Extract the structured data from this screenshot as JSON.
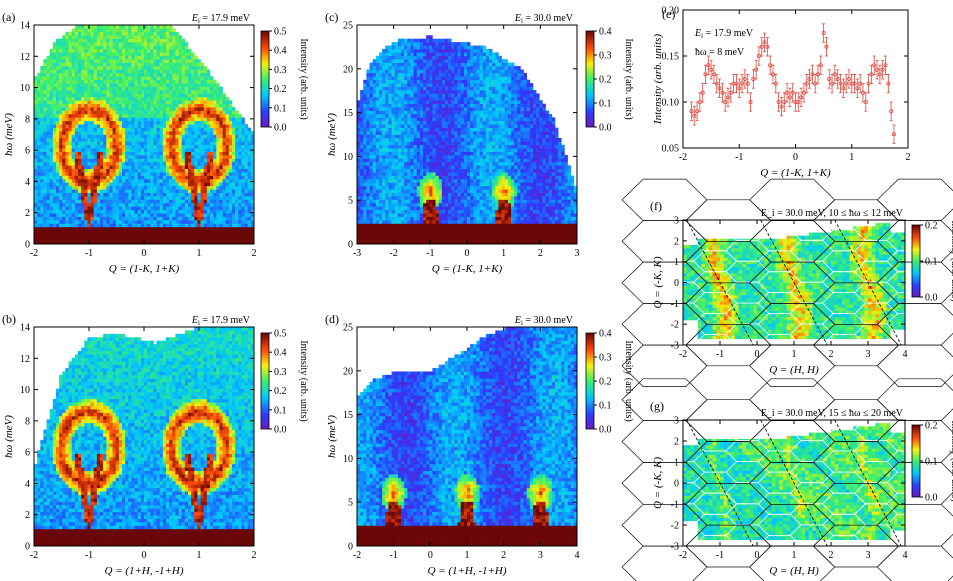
{
  "chart_data": [
    {
      "id": "a",
      "panel_label": "(a)",
      "type": "heatmap",
      "annotation": "E_i = 17.9 meV",
      "annotation_parts": {
        "sym": "E",
        "sub": "i",
        "rest": " = 17.9 meV"
      },
      "xlabel": "Q = (1-K, 1+K)",
      "ylabel": "ħω (meV)",
      "xlim": [
        -2,
        2
      ],
      "ylim": [
        0,
        14
      ],
      "xticks": [
        "-2",
        "-1",
        "0",
        "1",
        "2"
      ],
      "xtick_values": [
        -2,
        -1,
        0,
        1,
        2
      ],
      "yticks": [
        "0",
        "2",
        "4",
        "6",
        "8",
        "10",
        "12",
        "14"
      ],
      "ytick_values": [
        0,
        2,
        4,
        6,
        8,
        10,
        12,
        14
      ],
      "colorbar": {
        "label": "Intensity (arb. units)",
        "range": [
          0,
          0.5
        ],
        "ticks": [
          "0.0",
          "0.1",
          "0.2",
          "0.3",
          "0.4",
          "0.5"
        ],
        "tick_values": [
          0,
          0.1,
          0.2,
          0.3,
          0.4,
          0.5
        ]
      },
      "features": {
        "peaks_x": [
          -1,
          1
        ],
        "coverage_top": [
          [
            -2,
            10.5
          ],
          [
            -1.6,
            13
          ],
          [
            -1.2,
            14
          ],
          [
            0.5,
            14
          ],
          [
            1.3,
            10.5
          ],
          [
            2,
            7
          ]
        ]
      }
    },
    {
      "id": "b",
      "panel_label": "(b)",
      "type": "heatmap",
      "annotation": "E_i = 17.9 meV",
      "annotation_parts": {
        "sym": "E",
        "sub": "i",
        "rest": " = 17.9 meV"
      },
      "xlabel": "Q = (1+H, -1+H)",
      "ylabel": "ħω (meV)",
      "xlim": [
        -2,
        2
      ],
      "ylim": [
        0,
        14
      ],
      "xticks": [
        "-2",
        "-1",
        "0",
        "1",
        "2"
      ],
      "xtick_values": [
        -2,
        -1,
        0,
        1,
        2
      ],
      "yticks": [
        "0",
        "2",
        "4",
        "6",
        "8",
        "10",
        "12",
        "14"
      ],
      "ytick_values": [
        0,
        2,
        4,
        6,
        8,
        10,
        12,
        14
      ],
      "colorbar": {
        "label": "Intensity (arb. units)",
        "range": [
          0,
          0.5
        ],
        "ticks": [
          "0.0",
          "0.1",
          "0.2",
          "0.3",
          "0.4",
          "0.5"
        ],
        "tick_values": [
          0,
          0.1,
          0.2,
          0.3,
          0.4,
          0.5
        ]
      },
      "features": {
        "peaks_x": [
          -1,
          1
        ],
        "coverage_top": [
          [
            -2,
            5
          ],
          [
            -1.5,
            11
          ],
          [
            -1,
            13.3
          ],
          [
            -0.5,
            13.6
          ],
          [
            0.2,
            13
          ],
          [
            1,
            14
          ],
          [
            2,
            14
          ]
        ]
      }
    },
    {
      "id": "c",
      "panel_label": "(c)",
      "type": "heatmap",
      "annotation": "E_i = 30.0 meV",
      "annotation_parts": {
        "sym": "E",
        "sub": "i",
        "rest": " = 30.0 meV"
      },
      "xlabel": "Q = (1-K, 1+K)",
      "ylabel": "ħω (meV)",
      "xlim": [
        -3,
        3
      ],
      "ylim": [
        0,
        25
      ],
      "xticks": [
        "-3",
        "-2",
        "-1",
        "0",
        "1",
        "2",
        "3"
      ],
      "xtick_values": [
        -3,
        -2,
        -1,
        0,
        1,
        2,
        3
      ],
      "yticks": [
        "0",
        "5",
        "10",
        "15",
        "20",
        "25"
      ],
      "ytick_values": [
        0,
        5,
        10,
        15,
        20,
        25
      ],
      "colorbar": {
        "label": "Intensity (arb. units)",
        "range": [
          0,
          0.4
        ],
        "ticks": [
          "0.0",
          "0.1",
          "0.2",
          "0.3",
          "0.4"
        ],
        "tick_values": [
          0,
          0.1,
          0.2,
          0.3,
          0.4
        ]
      },
      "features": {
        "peaks_x": [
          -1,
          1
        ],
        "coverage_top": [
          [
            -3,
            16
          ],
          [
            -2.6,
            21
          ],
          [
            -2,
            23.2
          ],
          [
            -1,
            23.7
          ],
          [
            0.5,
            22.5
          ],
          [
            1.5,
            20
          ],
          [
            2.4,
            14
          ],
          [
            3,
            6
          ]
        ]
      }
    },
    {
      "id": "d",
      "panel_label": "(d)",
      "type": "heatmap",
      "annotation": "E_i = 30.0 meV",
      "annotation_parts": {
        "sym": "E",
        "sub": "i",
        "rest": " = 30.0 meV"
      },
      "xlabel": "Q = (1+H, -1+H)",
      "ylabel": "ħω (meV)",
      "xlim": [
        -2,
        4
      ],
      "ylim": [
        0,
        25
      ],
      "xticks": [
        "-2",
        "-1",
        "0",
        "1",
        "2",
        "3",
        "4"
      ],
      "xtick_values": [
        -2,
        -1,
        0,
        1,
        2,
        3,
        4
      ],
      "yticks": [
        "0",
        "5",
        "10",
        "15",
        "20",
        "25"
      ],
      "ytick_values": [
        0,
        5,
        10,
        15,
        20,
        25
      ],
      "colorbar": {
        "label": "Intensity (arb. units)",
        "range": [
          0,
          0.4
        ],
        "ticks": [
          "0.0",
          "0.1",
          "0.2",
          "0.3",
          "0.4"
        ],
        "tick_values": [
          0,
          0.1,
          0.2,
          0.3,
          0.4
        ]
      },
      "features": {
        "peaks_x": [
          -1,
          1,
          3
        ],
        "coverage_top": [
          [
            -2,
            17
          ],
          [
            -1.6,
            19
          ],
          [
            -1,
            19.8
          ],
          [
            0,
            20
          ],
          [
            0.8,
            22
          ],
          [
            1.5,
            24
          ],
          [
            2.2,
            25
          ],
          [
            4,
            25
          ]
        ]
      }
    },
    {
      "id": "e",
      "panel_label": "(e)",
      "type": "scatter",
      "annotation_lines": [
        "E_i = 17.9 meV",
        "ħω = 8 meV"
      ],
      "xlabel": "Q = (1-K, 1+K)",
      "ylabel": "Intensity (arb. units)",
      "xlim": [
        -2,
        2
      ],
      "ylim": [
        0.05,
        0.2
      ],
      "xticks": [
        "-2",
        "-1",
        "0",
        "1",
        "2"
      ],
      "xtick_values": [
        -2,
        -1,
        0,
        1,
        2
      ],
      "yticks": [
        "0.05",
        "0.10",
        "0.15",
        "0.20"
      ],
      "ytick_values": [
        0.05,
        0.1,
        0.15,
        0.2
      ],
      "error": 0.01,
      "x": [
        -1.85,
        -1.8,
        -1.75,
        -1.7,
        -1.65,
        -1.6,
        -1.55,
        -1.5,
        -1.45,
        -1.4,
        -1.35,
        -1.3,
        -1.25,
        -1.2,
        -1.15,
        -1.1,
        -1.05,
        -1.0,
        -0.95,
        -0.9,
        -0.85,
        -0.8,
        -0.75,
        -0.7,
        -0.65,
        -0.6,
        -0.55,
        -0.5,
        -0.45,
        -0.4,
        -0.35,
        -0.3,
        -0.25,
        -0.2,
        -0.15,
        -0.1,
        -0.05,
        0.0,
        0.05,
        0.1,
        0.15,
        0.2,
        0.25,
        0.3,
        0.35,
        0.4,
        0.45,
        0.5,
        0.55,
        0.6,
        0.65,
        0.7,
        0.75,
        0.8,
        0.85,
        0.9,
        0.95,
        1.0,
        1.05,
        1.1,
        1.15,
        1.2,
        1.25,
        1.3,
        1.35,
        1.4,
        1.45,
        1.5,
        1.55,
        1.6,
        1.65,
        1.7,
        1.75
      ],
      "y": [
        0.09,
        0.085,
        0.09,
        0.1,
        0.11,
        0.13,
        0.14,
        0.135,
        0.13,
        0.12,
        0.115,
        0.11,
        0.1,
        0.105,
        0.11,
        0.12,
        0.12,
        0.115,
        0.12,
        0.125,
        0.12,
        0.1,
        0.125,
        0.135,
        0.15,
        0.16,
        0.165,
        0.16,
        0.14,
        0.13,
        0.12,
        0.1,
        0.095,
        0.1,
        0.11,
        0.105,
        0.11,
        0.1,
        0.1,
        0.105,
        0.11,
        0.12,
        0.125,
        0.13,
        0.12,
        0.13,
        0.14,
        0.175,
        0.16,
        0.125,
        0.12,
        0.13,
        0.125,
        0.12,
        0.115,
        0.12,
        0.125,
        0.12,
        0.12,
        0.115,
        0.12,
        0.11,
        0.1,
        0.12,
        0.13,
        0.14,
        0.135,
        0.13,
        0.135,
        0.14,
        0.12,
        0.09,
        0.065
      ]
    },
    {
      "id": "f",
      "panel_label": "(f)",
      "type": "heatmap",
      "annotation": "E_i = 30.0 meV, 10 ≤ ħω ≤ 12 meV",
      "xlabel": "Q = (H, H)",
      "ylabel": "Q = (-K, K)",
      "xlim": [
        -2,
        4
      ],
      "ylim": [
        -3,
        3
      ],
      "xticks": [
        "-2",
        "-1",
        "0",
        "1",
        "2",
        "3",
        "4"
      ],
      "xtick_values": [
        -2,
        -1,
        0,
        1,
        2,
        3,
        4
      ],
      "yticks": [
        "-3",
        "-2",
        "-1",
        "0",
        "1",
        "2",
        "3"
      ],
      "ytick_values": [
        -3,
        -2,
        -1,
        0,
        1,
        2,
        3
      ],
      "colorbar": {
        "label": "Intensity (arb. units)",
        "range": [
          0,
          0.2
        ],
        "ticks": [
          "0.0",
          "0.1",
          "0.2"
        ],
        "tick_values": [
          0,
          0.1,
          0.2
        ]
      },
      "features": {
        "bright_x": [
          -1,
          1,
          3
        ]
      }
    },
    {
      "id": "g",
      "panel_label": "(g)",
      "type": "heatmap",
      "annotation": "E_i = 30.0 meV, 15 ≤ ħω ≤ 20 meV",
      "xlabel": "Q = (H, H)",
      "ylabel": "Q = (-K, K)",
      "xlim": [
        -2,
        4
      ],
      "ylim": [
        -3,
        3
      ],
      "xticks": [
        "-2",
        "-1",
        "0",
        "1",
        "2",
        "3",
        "4"
      ],
      "xtick_values": [
        -2,
        -1,
        0,
        1,
        2,
        3,
        4
      ],
      "yticks": [
        "-3",
        "-2",
        "-1",
        "0",
        "1",
        "2",
        "3"
      ],
      "ytick_values": [
        -3,
        -2,
        -1,
        0,
        1,
        2,
        3
      ],
      "colorbar": {
        "label": "Intensity (arb. units)",
        "range": [
          0,
          0.2
        ],
        "ticks": [
          "0.0",
          "0.1",
          "0.2"
        ],
        "tick_values": [
          0,
          0.1,
          0.2
        ]
      },
      "features": {
        "bright_x": [
          -1,
          1,
          3
        ]
      }
    }
  ]
}
